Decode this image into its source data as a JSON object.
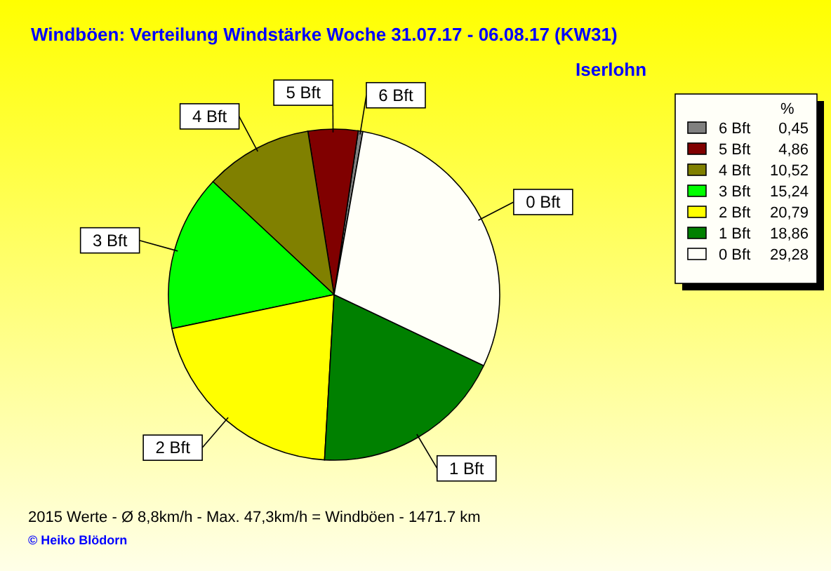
{
  "chart_data": {
    "type": "pie",
    "title": "Windböen: Verteilung Windstärke  Woche 31.07.17 - 06.08.17 (KW31)",
    "subtitle": "Iserlohn",
    "legend_title": "%",
    "legend": "top right",
    "categories": [
      "6 Bft",
      "5 Bft",
      "4 Bft",
      "3 Bft",
      "2 Bft",
      "1 Bft",
      "0 Bft"
    ],
    "values": [
      0.45,
      4.86,
      10.52,
      15.24,
      20.79,
      18.86,
      29.28
    ],
    "value_labels": [
      "0,45",
      "4,86",
      "10,52",
      "15,24",
      "20,79",
      "18,86",
      "29,28"
    ],
    "colors": [
      "#808080",
      "#800000",
      "#808000",
      "#00ff00",
      "#ffff00",
      "#008000",
      "#fffff8"
    ],
    "annotations": [
      "2015 Werte   -   Ø 8,8km/h  -  Max. 47,3km/h = Windböen   -   1471.7 km",
      "© Heiko Blödorn"
    ]
  }
}
